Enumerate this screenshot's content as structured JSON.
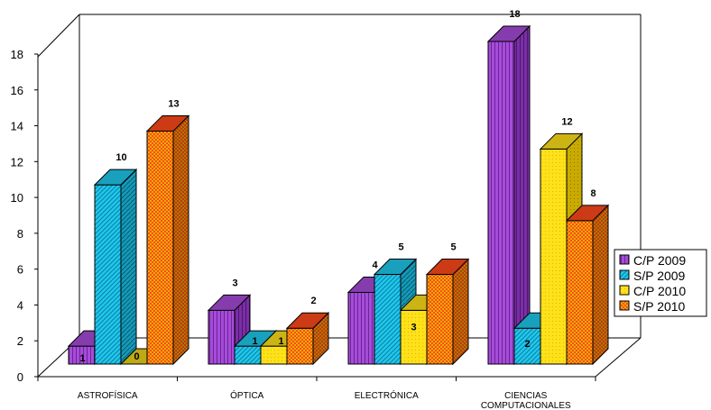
{
  "chart_data": {
    "type": "bar",
    "title": "",
    "xlabel": "",
    "ylabel": "",
    "ylim": [
      0,
      18
    ],
    "yticks": [
      0,
      2,
      4,
      6,
      8,
      10,
      12,
      14,
      16,
      18
    ],
    "grid": false,
    "legend_position": "right",
    "categories": [
      [
        "ASTROFÍSICA"
      ],
      [
        "ÓPTICA"
      ],
      [
        "ELECTRÓNICA"
      ],
      [
        "CIENCIAS",
        "COMPUTACIONALES"
      ]
    ],
    "series": [
      {
        "name": "C/P 2009",
        "color": "#a64cd9",
        "values": [
          1,
          3,
          4,
          18
        ]
      },
      {
        "name": "S/P 2009",
        "color": "#1fc8ec",
        "values": [
          10,
          1,
          5,
          2
        ]
      },
      {
        "name": "C/P 2010",
        "color": "#ffe11a",
        "values": [
          0,
          1,
          3,
          12
        ]
      },
      {
        "name": "S/P 2010",
        "color": "#ff4a1a",
        "values": [
          13,
          2,
          5,
          8
        ]
      }
    ]
  }
}
